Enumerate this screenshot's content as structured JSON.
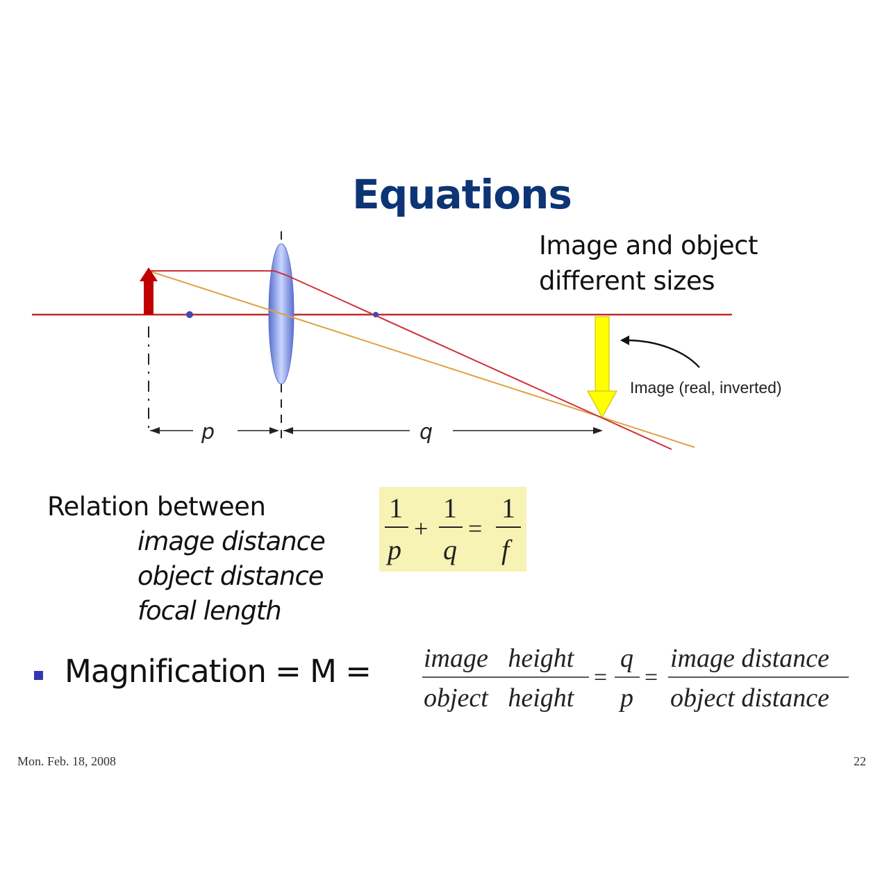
{
  "slide": {
    "title": "Equations",
    "note_line1": "Image and object",
    "note_line2": "different sizes",
    "footer_date": "Mon. Feb. 18, 2008",
    "page_number": "22"
  },
  "diagram": {
    "image_label": "Image (real, inverted)",
    "p_label": "p",
    "q_label": "q",
    "colors": {
      "axis": "#c0282d",
      "object_arrow": "#c00000",
      "image_arrow": "#ffff00",
      "ray_orange": "#e0a040",
      "ray_red": "#d03038",
      "lens": "#6d83d6",
      "focal_point": "#4848b0"
    }
  },
  "relation": {
    "heading": "Relation between",
    "items": [
      "image distance",
      "object distance",
      "focal length"
    ]
  },
  "lens_equation": {
    "n1": "1",
    "d1": "p",
    "plus": "+",
    "n2": "1",
    "d2": "q",
    "equals": "=",
    "n3": "1",
    "d3": "f",
    "highlight_color": "#f7f3b4"
  },
  "magnification": {
    "label": "Magnification = M =",
    "frac1_num": "image   height",
    "frac1_den": "object   height",
    "eq1": "=",
    "frac2_num": "q",
    "frac2_den": "p",
    "eq2": "=",
    "frac3_num": "image distance",
    "frac3_den": "object distance"
  }
}
